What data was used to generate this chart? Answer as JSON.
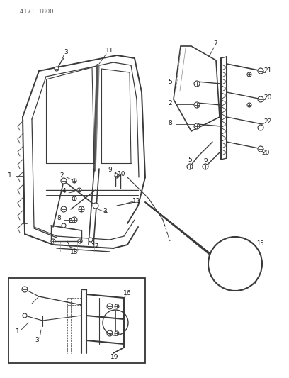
{
  "header": "4171  1800",
  "bg_color": "#f5f5f0",
  "line_color": "#3a3a3a",
  "label_color": "#1a1a1a",
  "figsize": [
    4.08,
    5.33
  ],
  "dpi": 100
}
